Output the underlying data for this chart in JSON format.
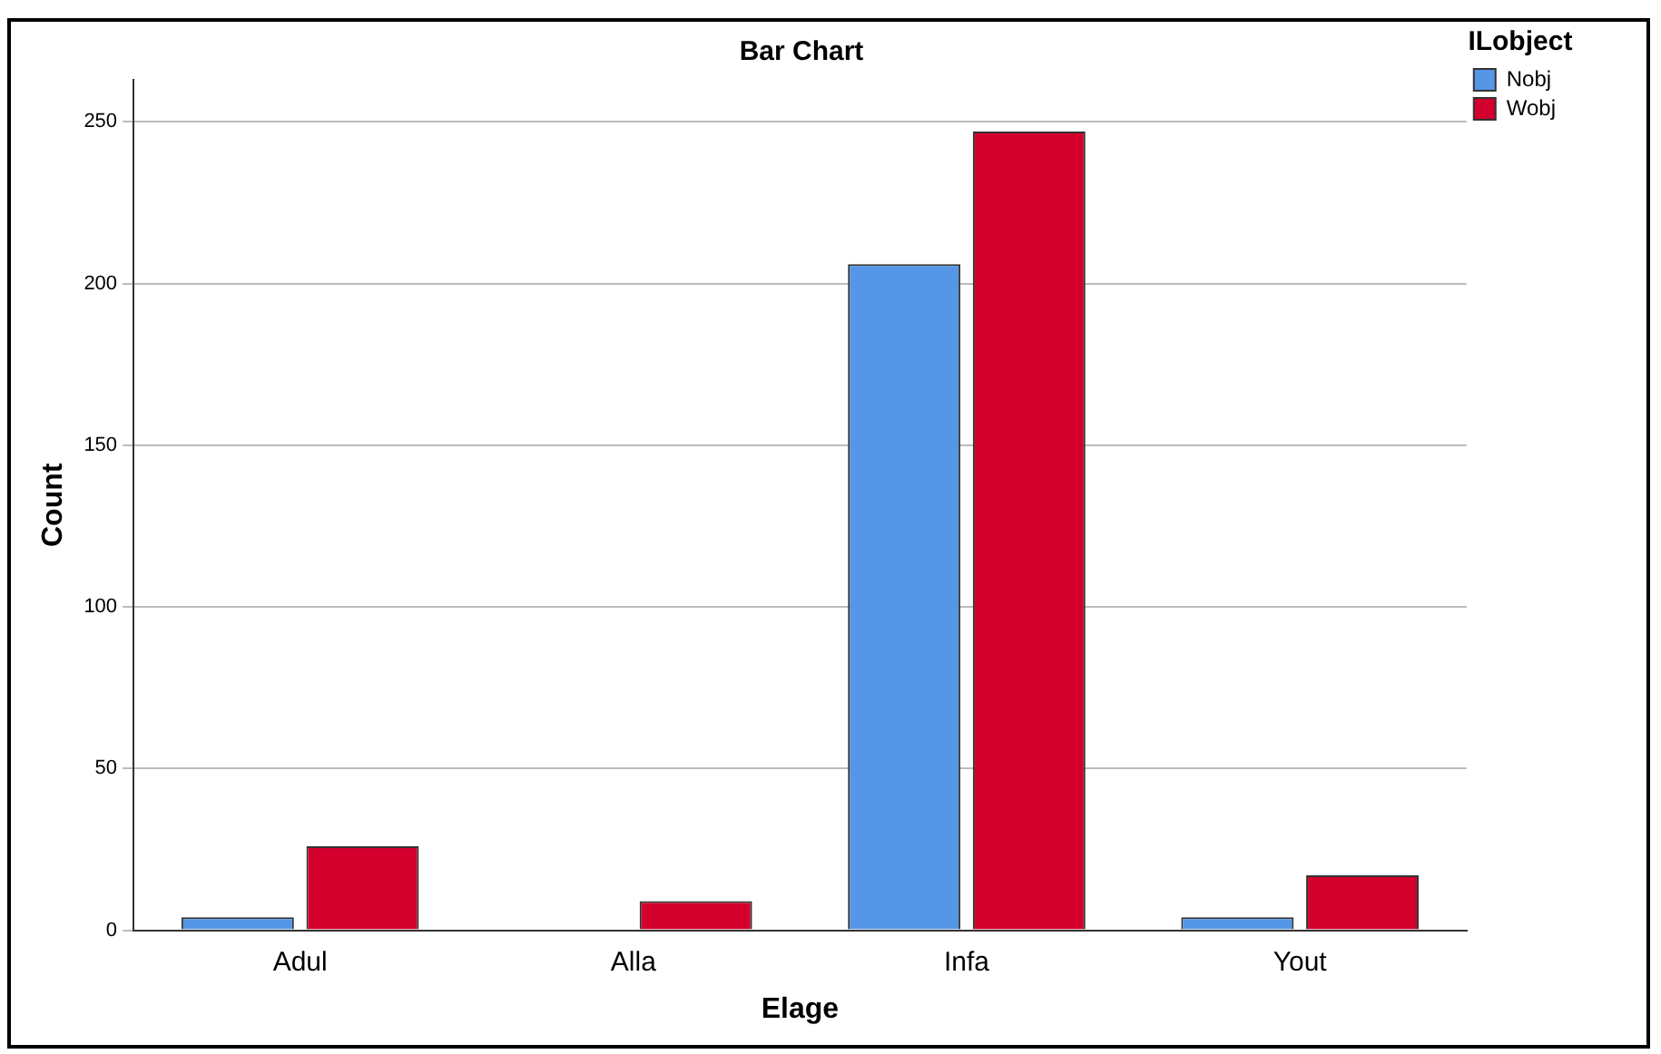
{
  "chart_data": {
    "type": "bar",
    "title": "Bar Chart",
    "xlabel": "Elage",
    "ylabel": "Count",
    "legend_title": "ILobject",
    "categories": [
      "Adul",
      "Alla",
      "Infa",
      "Yout"
    ],
    "series": [
      {
        "name": "Nobj",
        "color": "#5596e6",
        "values": [
          4,
          0,
          206,
          4
        ]
      },
      {
        "name": "Wobj",
        "color": "#d3002d",
        "values": [
          26,
          9,
          247,
          17
        ]
      }
    ],
    "ylim": [
      0,
      263
    ],
    "yticks": [
      0,
      50,
      100,
      150,
      200,
      250
    ],
    "grid": "y",
    "legend": "top right"
  }
}
